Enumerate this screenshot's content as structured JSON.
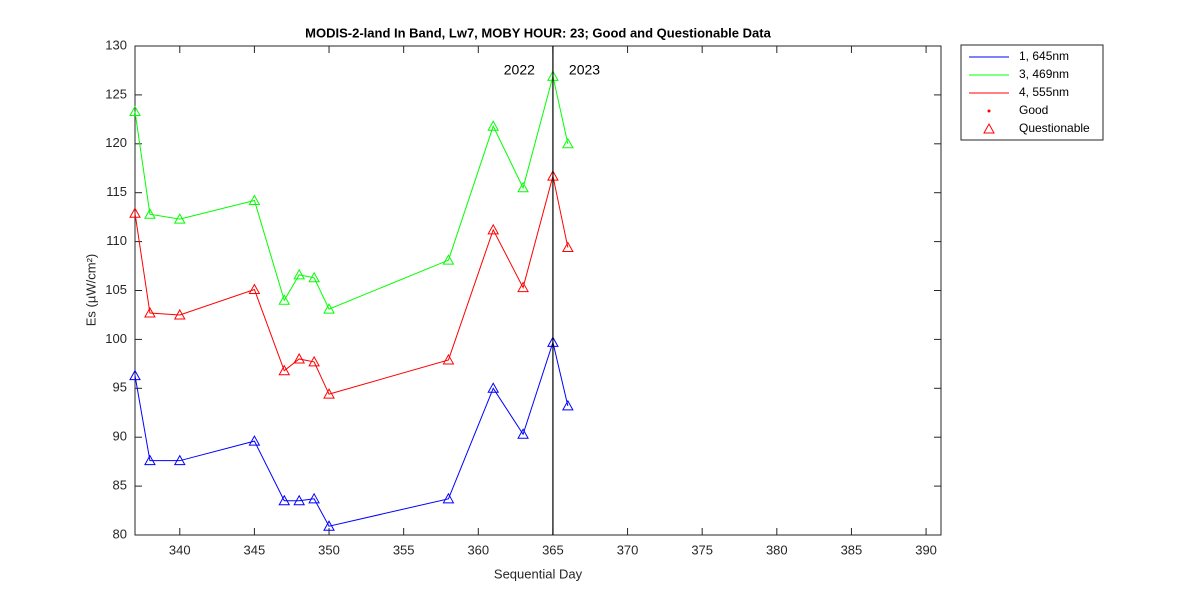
{
  "chart_data": {
    "type": "line",
    "title": "MODIS-2-land In Band,  Lw7, MOBY HOUR: 23;  Good and Questionable Data",
    "x_label": "Sequential Day",
    "y_label": "Es (µW/cm²)",
    "x": [
      337,
      338,
      340,
      345,
      347,
      348,
      349,
      350,
      358,
      361,
      363,
      365,
      366
    ],
    "series": [
      {
        "name": "1, 645nm",
        "color": "#0000ff",
        "values": [
          96.3,
          87.6,
          87.6,
          89.6,
          83.5,
          83.5,
          83.7,
          80.9,
          83.7,
          95.0,
          90.3,
          99.7,
          93.2
        ]
      },
      {
        "name": "3, 469nm",
        "color": "#00ff00",
        "values": [
          123.3,
          112.8,
          112.3,
          114.2,
          104.0,
          106.6,
          106.3,
          103.1,
          108.1,
          121.8,
          115.5,
          126.9,
          120.0
        ]
      },
      {
        "name": "4, 555nm",
        "color": "#ff0000",
        "values": [
          112.9,
          102.7,
          102.5,
          105.1,
          96.8,
          98.0,
          97.7,
          94.4,
          97.9,
          111.2,
          105.3,
          116.7,
          109.4
        ]
      }
    ],
    "marker_legend": [
      {
        "name": "Good",
        "color": "#ff0000"
      },
      {
        "name": "Questionable",
        "color": "#ff0000"
      }
    ],
    "vline": {
      "x": 365,
      "labels": [
        "2022",
        "2023"
      ]
    },
    "xlim": [
      337,
      391
    ],
    "xticks": [
      340,
      345,
      350,
      355,
      360,
      365,
      370,
      375,
      380,
      385,
      390
    ],
    "ylim": [
      80,
      130
    ],
    "yticks": [
      80,
      85,
      90,
      95,
      100,
      105,
      110,
      115,
      120,
      125,
      130
    ],
    "legend": "outside-top-right"
  }
}
